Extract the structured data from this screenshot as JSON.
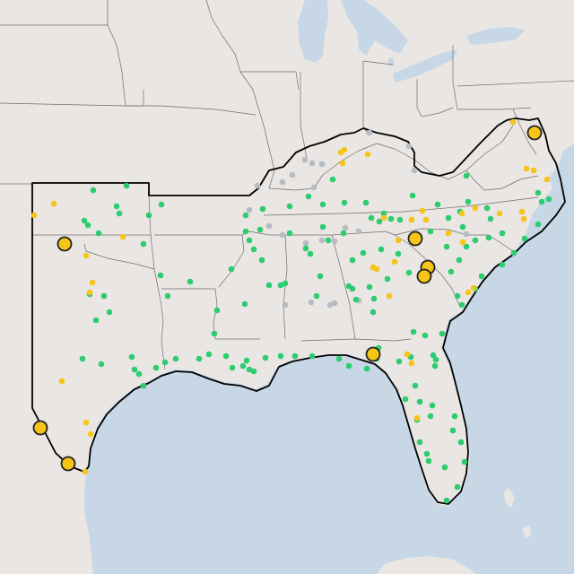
{
  "map": {
    "colors": {
      "water": "#c7d7e6",
      "land": "#eae6e3",
      "land_alt": "#e7e2de",
      "state_line": "#6e6e6e",
      "region_outline": "#000000",
      "green": "#2ecc71",
      "yellow": "#f5c518",
      "gray": "#b5bcc3",
      "large_fill": "#f5c518",
      "large_stroke": "#222222"
    },
    "legend": null,
    "markers": {
      "green": [
        [
          104,
          212
        ],
        [
          141,
          207
        ],
        [
          180,
          228
        ],
        [
          133,
          238
        ],
        [
          166,
          240
        ],
        [
          94,
          246
        ],
        [
          98,
          251
        ],
        [
          130,
          230
        ],
        [
          160,
          272
        ],
        [
          110,
          260
        ],
        [
          179,
          307
        ],
        [
          212,
          314
        ],
        [
          187,
          330
        ],
        [
          100,
          328
        ],
        [
          116,
          330
        ],
        [
          107,
          357
        ],
        [
          122,
          348
        ],
        [
          92,
          400
        ],
        [
          113,
          406
        ],
        [
          147,
          398
        ],
        [
          150,
          412
        ],
        [
          155,
          417
        ],
        [
          160,
          430
        ],
        [
          174,
          410
        ],
        [
          196,
          400
        ],
        [
          184,
          404
        ],
        [
          222,
          400
        ],
        [
          233,
          395
        ],
        [
          239,
          372
        ],
        [
          252,
          397
        ],
        [
          259,
          410
        ],
        [
          271,
          408
        ],
        [
          275,
          402
        ],
        [
          278,
          412
        ],
        [
          283,
          414
        ],
        [
          296,
          399
        ],
        [
          313,
          397
        ],
        [
          329,
          397
        ],
        [
          348,
          397
        ],
        [
          378,
          400
        ],
        [
          389,
          408
        ],
        [
          409,
          411
        ],
        [
          417,
          392
        ],
        [
          422,
          388
        ],
        [
          483,
          396
        ],
        [
          486,
          401
        ],
        [
          485,
          408
        ],
        [
          463,
          430
        ],
        [
          452,
          445
        ],
        [
          468,
          448
        ],
        [
          482,
          452
        ],
        [
          480,
          464
        ],
        [
          465,
          468
        ],
        [
          507,
          464
        ],
        [
          505,
          480
        ],
        [
          468,
          493
        ],
        [
          514,
          493
        ],
        [
          478,
          514
        ],
        [
          518,
          515
        ],
        [
          496,
          521
        ],
        [
          510,
          543
        ],
        [
          498,
          558
        ],
        [
          476,
          506
        ],
        [
          274,
          240
        ],
        [
          293,
          233
        ],
        [
          323,
          230
        ],
        [
          344,
          219
        ],
        [
          360,
          228
        ],
        [
          371,
          200
        ],
        [
          384,
          226
        ],
        [
          408,
          226
        ],
        [
          414,
          243
        ],
        [
          423,
          247
        ],
        [
          428,
          238
        ],
        [
          436,
          244
        ],
        [
          446,
          245
        ],
        [
          460,
          218
        ],
        [
          488,
          228
        ],
        [
          520,
          196
        ],
        [
          522,
          225
        ],
        [
          513,
          236
        ],
        [
          543,
          232
        ],
        [
          500,
          243
        ],
        [
          480,
          258
        ],
        [
          516,
          253
        ],
        [
          545,
          265
        ],
        [
          530,
          268
        ],
        [
          520,
          275
        ],
        [
          512,
          290
        ],
        [
          498,
          275
        ],
        [
          503,
          303
        ],
        [
          510,
          330
        ],
        [
          515,
          340
        ],
        [
          530,
          322
        ],
        [
          537,
          308
        ],
        [
          560,
          295
        ],
        [
          573,
          282
        ],
        [
          585,
          266
        ],
        [
          600,
          250
        ],
        [
          612,
          222
        ],
        [
          604,
          225
        ],
        [
          600,
          215
        ],
        [
          560,
          260
        ],
        [
          547,
          244
        ],
        [
          444,
          283
        ],
        [
          425,
          278
        ],
        [
          405,
          282
        ],
        [
          412,
          320
        ],
        [
          393,
          290
        ],
        [
          383,
          260
        ],
        [
          366,
          268
        ],
        [
          360,
          253
        ],
        [
          346,
          283
        ],
        [
          341,
          277
        ],
        [
          323,
          260
        ],
        [
          290,
          256
        ],
        [
          274,
          258
        ],
        [
          278,
          268
        ],
        [
          283,
          278
        ],
        [
          258,
          300
        ],
        [
          242,
          346
        ],
        [
          273,
          339
        ],
        [
          292,
          290
        ],
        [
          300,
          318
        ],
        [
          313,
          318
        ],
        [
          318,
          316
        ],
        [
          357,
          308
        ],
        [
          353,
          330
        ],
        [
          389,
          319
        ],
        [
          393,
          322
        ],
        [
          397,
          334
        ],
        [
          416,
          348
        ],
        [
          420,
          400
        ],
        [
          445,
          403
        ],
        [
          458,
          398
        ],
        [
          461,
          370
        ],
        [
          474,
          374
        ],
        [
          493,
          372
        ],
        [
          417,
          333
        ],
        [
          432,
          311
        ],
        [
          456,
          304
        ]
      ],
      "yellow": [
        [
          60,
          227
        ],
        [
          38,
          240
        ],
        [
          96,
          285
        ],
        [
          137,
          264
        ],
        [
          103,
          315
        ],
        [
          100,
          326
        ],
        [
          69,
          425
        ],
        [
          96,
          471
        ],
        [
          101,
          484
        ],
        [
          95,
          526
        ],
        [
          380,
          170
        ],
        [
          384,
          167
        ],
        [
          382,
          182
        ],
        [
          410,
          172
        ],
        [
          572,
          136
        ],
        [
          587,
          188
        ],
        [
          595,
          190
        ],
        [
          610,
          200
        ],
        [
          428,
          243
        ],
        [
          444,
          268
        ],
        [
          459,
          245
        ],
        [
          471,
          235
        ],
        [
          475,
          245
        ],
        [
          500,
          260
        ],
        [
          515,
          238
        ],
        [
          530,
          232
        ],
        [
          516,
          270
        ],
        [
          557,
          238
        ],
        [
          582,
          236
        ],
        [
          584,
          244
        ],
        [
          440,
          292
        ],
        [
          416,
          298
        ],
        [
          420,
          300
        ],
        [
          434,
          330
        ],
        [
          454,
          395
        ],
        [
          459,
          405
        ],
        [
          465,
          466
        ],
        [
          522,
          326
        ],
        [
          528,
          321
        ]
      ],
      "gray": [
        [
          340,
          178
        ],
        [
          348,
          182
        ],
        [
          359,
          183
        ],
        [
          326,
          195
        ],
        [
          315,
          203
        ],
        [
          412,
          148
        ],
        [
          456,
          163
        ],
        [
          462,
          190
        ],
        [
          350,
          209
        ],
        [
          287,
          207
        ],
        [
          278,
          234
        ],
        [
          300,
          252
        ],
        [
          315,
          262
        ],
        [
          341,
          271
        ],
        [
          359,
          268
        ],
        [
          373,
          269
        ],
        [
          318,
          340
        ],
        [
          347,
          337
        ],
        [
          368,
          340
        ],
        [
          373,
          338
        ],
        [
          400,
          335
        ],
        [
          520,
          261
        ],
        [
          385,
          254
        ],
        [
          400,
          258
        ]
      ],
      "large": [
        [
          596,
          148
        ],
        [
          72,
          272
        ],
        [
          463,
          266
        ],
        [
          477,
          298
        ],
        [
          473,
          308
        ],
        [
          416,
          395
        ],
        [
          45,
          477
        ],
        [
          76,
          517
        ]
      ]
    }
  }
}
